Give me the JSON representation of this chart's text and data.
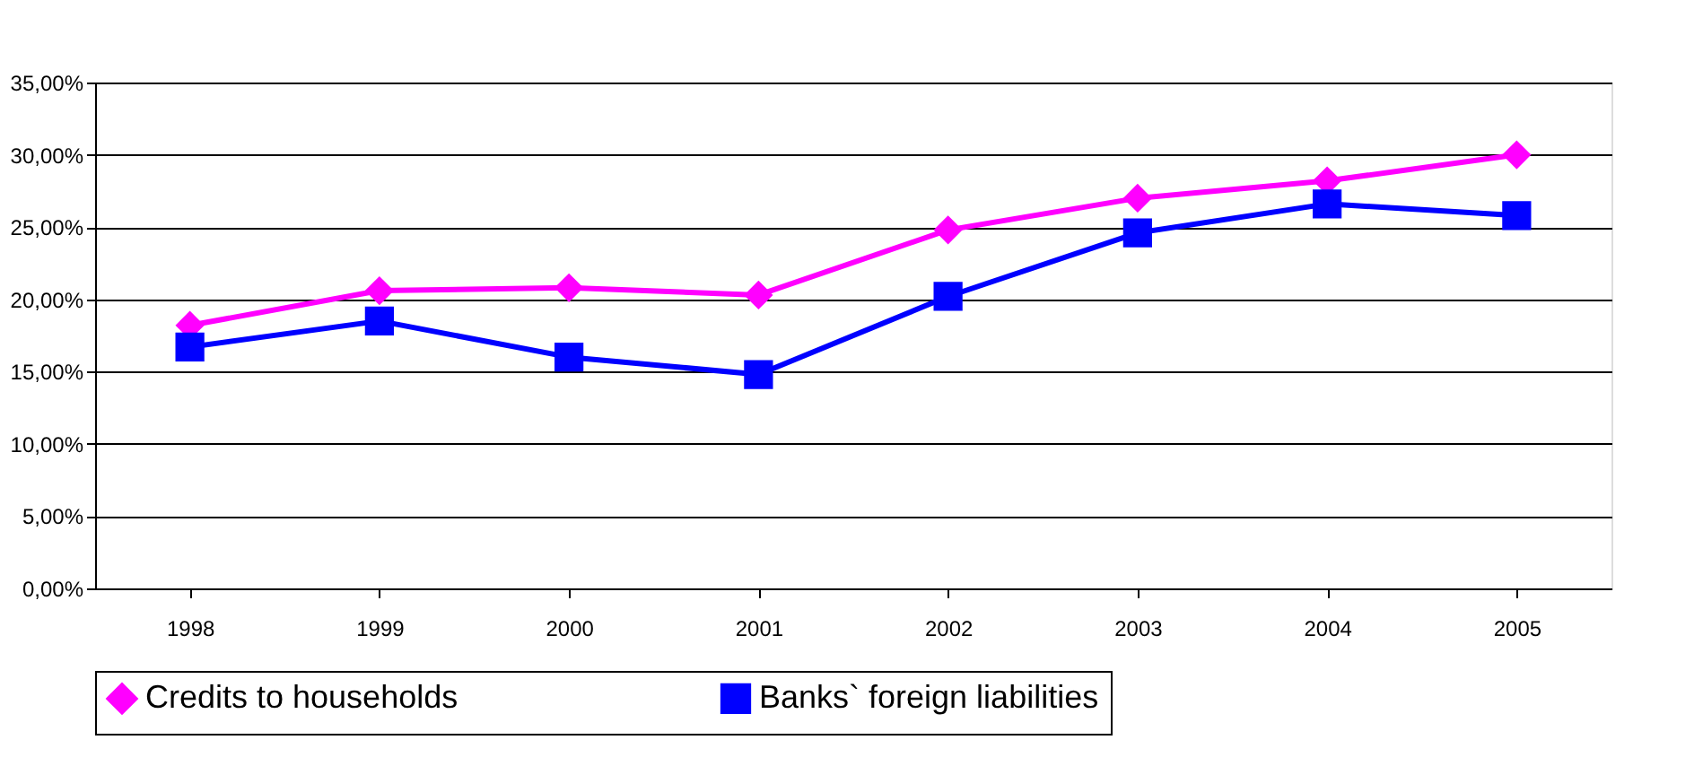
{
  "chart_data": {
    "type": "line",
    "categories": [
      "1998",
      "1999",
      "2000",
      "2001",
      "2002",
      "2003",
      "2004",
      "2005"
    ],
    "series": [
      {
        "name": "Credits to households",
        "color": "#ff00ff",
        "marker": "diamond",
        "values": [
          18.2,
          20.6,
          20.8,
          20.3,
          24.8,
          27.0,
          28.2,
          30.0
        ]
      },
      {
        "name": "Banks` foreign liabilities",
        "color": "#0000ff",
        "marker": "square",
        "values": [
          16.7,
          18.5,
          16.0,
          14.8,
          20.2,
          24.6,
          26.6,
          25.8
        ]
      }
    ],
    "ylim": [
      0,
      35
    ],
    "yticks": [
      {
        "value": 0,
        "label": "0,00%"
      },
      {
        "value": 5,
        "label": "5,00%"
      },
      {
        "value": 10,
        "label": "10,00%"
      },
      {
        "value": 15,
        "label": "15,00%"
      },
      {
        "value": 20,
        "label": "20,00%"
      },
      {
        "value": 25,
        "label": "25,00%"
      },
      {
        "value": 30,
        "label": "30,00%"
      },
      {
        "value": 35,
        "label": "35,00%"
      }
    ],
    "grid": "y",
    "legend": "bottom",
    "line_style": "solid"
  }
}
